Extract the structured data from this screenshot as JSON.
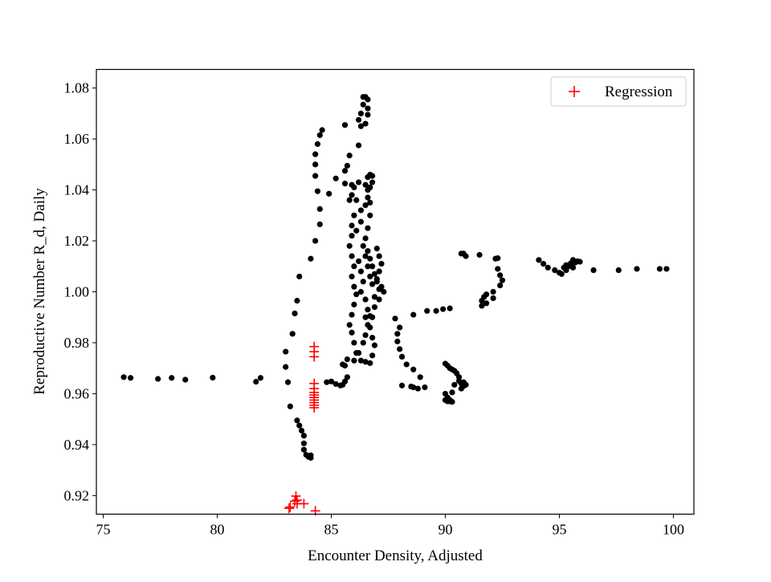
{
  "chart_data": {
    "type": "scatter",
    "title": "",
    "xlabel": "Encounter Density, Adjusted",
    "ylabel": "Reproductive Number R_d, Daily",
    "xlim": [
      74.7,
      100.9
    ],
    "ylim": [
      0.9127,
      1.0873
    ],
    "xticks": [
      75,
      80,
      85,
      90,
      95,
      100
    ],
    "yticks": [
      0.92,
      0.94,
      0.96,
      0.98,
      1.0,
      1.02,
      1.04,
      1.06,
      1.08
    ],
    "xtick_labels": [
      "75",
      "80",
      "85",
      "90",
      "95",
      "100"
    ],
    "ytick_labels": [
      "0.92",
      "0.94",
      "0.96",
      "0.98",
      "1.00",
      "1.02",
      "1.04",
      "1.06",
      "1.08"
    ],
    "grid": false,
    "legend_position": "top-right",
    "series": [
      {
        "marker": "circle",
        "color": "#000000",
        "points": [
          [
            75.9,
            0.9665
          ],
          [
            76.2,
            0.9662
          ],
          [
            77.4,
            0.9658
          ],
          [
            78.0,
            0.9662
          ],
          [
            78.6,
            0.9655
          ],
          [
            79.8,
            0.9663
          ],
          [
            81.7,
            0.9647
          ],
          [
            81.9,
            0.9662
          ],
          [
            83.0,
            0.9765
          ],
          [
            83.0,
            0.9705
          ],
          [
            83.1,
            0.9645
          ],
          [
            83.2,
            0.955
          ],
          [
            83.3,
            0.9835
          ],
          [
            83.5,
            0.9495
          ],
          [
            83.6,
            0.9475
          ],
          [
            83.7,
            0.9455
          ],
          [
            83.8,
            0.9435
          ],
          [
            83.8,
            0.9405
          ],
          [
            83.8,
            0.938
          ],
          [
            83.9,
            0.936
          ],
          [
            84.0,
            0.9352
          ],
          [
            84.1,
            0.9348
          ],
          [
            84.1,
            0.9358
          ],
          [
            83.4,
            0.9915
          ],
          [
            83.5,
            0.9965
          ],
          [
            83.6,
            1.006
          ],
          [
            84.1,
            1.013
          ],
          [
            84.3,
            1.02
          ],
          [
            84.5,
            1.0265
          ],
          [
            84.5,
            1.0325
          ],
          [
            84.4,
            1.0395
          ],
          [
            84.3,
            1.0455
          ],
          [
            84.3,
            1.05
          ],
          [
            84.3,
            1.054
          ],
          [
            84.4,
            1.058
          ],
          [
            84.5,
            1.0615
          ],
          [
            84.6,
            1.0635
          ],
          [
            84.9,
            1.0385
          ],
          [
            85.2,
            1.0445
          ],
          [
            85.6,
            1.0425
          ],
          [
            85.6,
            1.0475
          ],
          [
            85.8,
            1.0535
          ],
          [
            85.6,
            1.0655
          ],
          [
            85.7,
            1.0495
          ],
          [
            86.2,
            1.0575
          ],
          [
            86.3,
            1.065
          ],
          [
            86.2,
            1.0675
          ],
          [
            86.3,
            1.07
          ],
          [
            86.4,
            1.0735
          ],
          [
            86.4,
            1.0765
          ],
          [
            86.5,
            1.0765
          ],
          [
            86.6,
            1.0755
          ],
          [
            86.6,
            1.072
          ],
          [
            86.6,
            1.0695
          ],
          [
            86.5,
            1.066
          ],
          [
            85.9,
            1.042
          ],
          [
            86.0,
            1.041
          ],
          [
            85.9,
            1.038
          ],
          [
            86.1,
            1.036
          ],
          [
            86.3,
            1.032
          ],
          [
            86.3,
            1.0275
          ],
          [
            86.1,
            1.024
          ],
          [
            85.9,
            1.022
          ],
          [
            85.9,
            1.026
          ],
          [
            86.0,
            1.03
          ],
          [
            85.8,
            1.036
          ],
          [
            86.2,
            1.043
          ],
          [
            86.5,
            1.042
          ],
          [
            86.6,
            1.04
          ],
          [
            86.7,
            1.035
          ],
          [
            86.7,
            1.03
          ],
          [
            86.6,
            1.025
          ],
          [
            86.5,
            1.021
          ],
          [
            86.4,
            1.018
          ],
          [
            86.5,
            1.014
          ],
          [
            86.7,
            1.046
          ],
          [
            86.8,
            1.0455
          ],
          [
            86.8,
            1.043
          ],
          [
            86.6,
            1.045
          ],
          [
            86.7,
            1.041
          ],
          [
            86.6,
            1.037
          ],
          [
            86.5,
            1.034
          ],
          [
            85.8,
            1.018
          ],
          [
            85.9,
            1.014
          ],
          [
            86.0,
            1.01
          ],
          [
            85.9,
            1.006
          ],
          [
            86.0,
            1.002
          ],
          [
            86.1,
            0.999
          ],
          [
            86.0,
            0.995
          ],
          [
            85.9,
            0.991
          ],
          [
            85.8,
            0.987
          ],
          [
            85.9,
            0.984
          ],
          [
            86.0,
            0.98
          ],
          [
            86.1,
            0.976
          ],
          [
            86.0,
            0.973
          ],
          [
            86.2,
            1.012
          ],
          [
            86.3,
            1.008
          ],
          [
            86.4,
            1.004
          ],
          [
            86.3,
            1.0
          ],
          [
            86.5,
            0.997
          ],
          [
            86.6,
            0.993
          ],
          [
            86.5,
            0.99
          ],
          [
            86.6,
            1.016
          ],
          [
            86.7,
            1.013
          ],
          [
            86.8,
            1.01
          ],
          [
            86.9,
            1.007
          ],
          [
            87.0,
            1.004
          ],
          [
            87.1,
            1.001
          ],
          [
            86.9,
            0.998
          ],
          [
            86.8,
            1.003
          ],
          [
            86.7,
            1.006
          ],
          [
            86.6,
            1.01
          ],
          [
            87.0,
            1.017
          ],
          [
            87.1,
            1.014
          ],
          [
            87.2,
            1.011
          ],
          [
            87.1,
            1.008
          ],
          [
            87.0,
            1.005
          ],
          [
            87.2,
            1.002
          ],
          [
            87.3,
            1.0
          ],
          [
            87.1,
            0.997
          ],
          [
            86.9,
            0.994
          ],
          [
            86.8,
            0.99
          ],
          [
            86.7,
            0.986
          ],
          [
            86.8,
            0.982
          ],
          [
            86.9,
            0.979
          ],
          [
            86.8,
            0.975
          ],
          [
            86.7,
            0.972
          ],
          [
            86.5,
            0.9725
          ],
          [
            86.3,
            0.973
          ],
          [
            86.2,
            0.976
          ],
          [
            86.4,
            0.98
          ],
          [
            86.5,
            0.983
          ],
          [
            86.6,
            0.987
          ],
          [
            86.7,
            0.9905
          ],
          [
            85.5,
            0.9715
          ],
          [
            85.6,
            0.971
          ],
          [
            85.7,
            0.9735
          ],
          [
            84.8,
            0.9645
          ],
          [
            85.0,
            0.9648
          ],
          [
            85.2,
            0.9638
          ],
          [
            85.4,
            0.9632
          ],
          [
            85.5,
            0.9635
          ],
          [
            85.6,
            0.9648
          ],
          [
            85.7,
            0.9665
          ],
          [
            87.8,
            0.9895
          ],
          [
            88.0,
            0.986
          ],
          [
            87.9,
            0.9835
          ],
          [
            87.9,
            0.9805
          ],
          [
            88.0,
            0.9775
          ],
          [
            88.1,
            0.9745
          ],
          [
            88.3,
            0.9715
          ],
          [
            88.6,
            0.9695
          ],
          [
            88.9,
            0.9665
          ],
          [
            88.1,
            0.9632
          ],
          [
            88.5,
            0.9628
          ],
          [
            88.6,
            0.9625
          ],
          [
            88.8,
            0.962
          ],
          [
            89.1,
            0.9625
          ],
          [
            88.6,
            0.991
          ],
          [
            89.2,
            0.9925
          ],
          [
            89.6,
            0.9925
          ],
          [
            89.9,
            0.9932
          ],
          [
            90.2,
            0.9935
          ],
          [
            90.0,
            0.9718
          ],
          [
            90.1,
            0.971
          ],
          [
            90.2,
            0.97
          ],
          [
            90.3,
            0.9695
          ],
          [
            90.4,
            0.969
          ],
          [
            90.5,
            0.968
          ],
          [
            90.6,
            0.9665
          ],
          [
            90.6,
            0.965
          ],
          [
            90.7,
            0.964
          ],
          [
            90.8,
            0.963
          ],
          [
            90.9,
            0.9635
          ],
          [
            90.8,
            0.9645
          ],
          [
            90.7,
            0.962
          ],
          [
            90.0,
            0.96
          ],
          [
            90.0,
            0.9575
          ],
          [
            90.1,
            0.957
          ],
          [
            90.2,
            0.957
          ],
          [
            90.2,
            0.9575
          ],
          [
            90.3,
            0.9568
          ],
          [
            90.1,
            0.9585
          ],
          [
            90.3,
            0.9605
          ],
          [
            90.4,
            0.9635
          ],
          [
            90.7,
            1.015
          ],
          [
            90.8,
            1.015
          ],
          [
            90.9,
            1.014
          ],
          [
            91.5,
            1.0145
          ],
          [
            92.2,
            1.013
          ],
          [
            92.3,
            1.0132
          ],
          [
            92.3,
            1.009
          ],
          [
            92.4,
            1.0065
          ],
          [
            92.5,
            1.0045
          ],
          [
            92.4,
            1.0025
          ],
          [
            92.1,
            1.0
          ],
          [
            91.8,
            0.999
          ],
          [
            91.7,
            0.998
          ],
          [
            91.6,
            0.9965
          ],
          [
            91.6,
            0.9945
          ],
          [
            91.8,
            0.9955
          ],
          [
            92.1,
            0.9975
          ],
          [
            94.1,
            1.0125
          ],
          [
            94.3,
            1.011
          ],
          [
            94.5,
            1.0095
          ],
          [
            94.8,
            1.0085
          ],
          [
            95.0,
            1.0075
          ],
          [
            95.1,
            1.007
          ],
          [
            95.3,
            1.0085
          ],
          [
            95.4,
            1.01
          ],
          [
            95.5,
            1.0112
          ],
          [
            95.6,
            1.0125
          ],
          [
            95.7,
            1.0115
          ],
          [
            95.8,
            1.012
          ],
          [
            95.9,
            1.0118
          ],
          [
            95.6,
            1.0095
          ],
          [
            95.3,
            1.0105
          ],
          [
            95.2,
            1.0095
          ],
          [
            96.5,
            1.0085
          ],
          [
            97.6,
            1.0085
          ],
          [
            98.4,
            1.009
          ],
          [
            99.4,
            1.009
          ],
          [
            99.7,
            1.009
          ]
        ]
      },
      {
        "name": "Regression",
        "marker": "plus",
        "color": "#ff0000",
        "points": [
          [
            84.25,
            0.9785
          ],
          [
            84.25,
            0.9765
          ],
          [
            84.25,
            0.9745
          ],
          [
            84.25,
            0.964
          ],
          [
            84.25,
            0.962
          ],
          [
            84.25,
            0.9605
          ],
          [
            84.25,
            0.9595
          ],
          [
            84.25,
            0.9585
          ],
          [
            84.25,
            0.9575
          ],
          [
            84.25,
            0.9565
          ],
          [
            84.25,
            0.9555
          ],
          [
            84.25,
            0.9545
          ],
          [
            83.45,
            0.9198
          ],
          [
            83.5,
            0.9182
          ],
          [
            83.4,
            0.9178
          ],
          [
            83.5,
            0.9168
          ],
          [
            83.8,
            0.9168
          ],
          [
            83.2,
            0.9155
          ],
          [
            83.15,
            0.915
          ],
          [
            84.3,
            0.914
          ]
        ]
      }
    ]
  }
}
